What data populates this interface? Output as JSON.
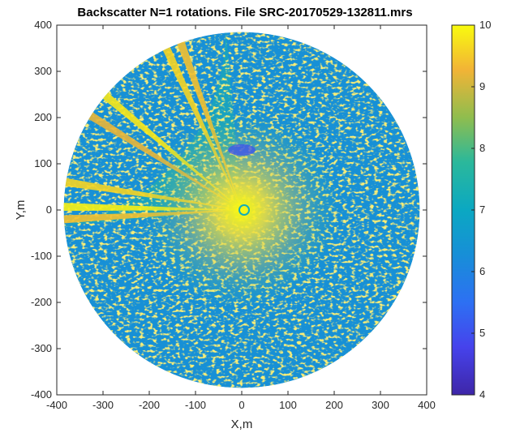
{
  "chart_data": {
    "type": "heatmap",
    "title": "Backscatter N=1 rotations. File SRC-20170529-132811.mrs",
    "xlabel": "X,m",
    "ylabel": "Y,m",
    "xlim": [
      -400,
      400
    ],
    "ylim": [
      -400,
      400
    ],
    "x_ticks": [
      "-400",
      "-300",
      "-200",
      "-100",
      "0",
      "100",
      "200",
      "300",
      "400"
    ],
    "y_ticks": [
      "400",
      "300",
      "200",
      "100",
      "0",
      "-100",
      "-200",
      "-300",
      "-400"
    ],
    "colorbar": {
      "colormap": "parula",
      "range": [
        4,
        10
      ],
      "ticks": [
        "10",
        "9",
        "8",
        "7",
        "6",
        "5",
        "4"
      ]
    },
    "scan": {
      "shape": "disc",
      "center": [
        0,
        0
      ],
      "radius_m": 385,
      "typical_value": 6.3,
      "near_center_value": 9.5,
      "bright_sector_deg": [
        95,
        185
      ],
      "streak_angles_deg": [
        {
          "angle": 115,
          "value": 9.6
        },
        {
          "angle": 110,
          "value": 9.4
        },
        {
          "angle": 140,
          "value": 9.8
        },
        {
          "angle": 148,
          "value": 9.2
        },
        {
          "angle": 171,
          "value": 9.6
        },
        {
          "angle": 179,
          "value": 9.9
        },
        {
          "angle": 183,
          "value": 9.4
        }
      ],
      "dark_patch": {
        "x": 0,
        "y": 130,
        "value": 5.0
      }
    },
    "grid": false
  }
}
